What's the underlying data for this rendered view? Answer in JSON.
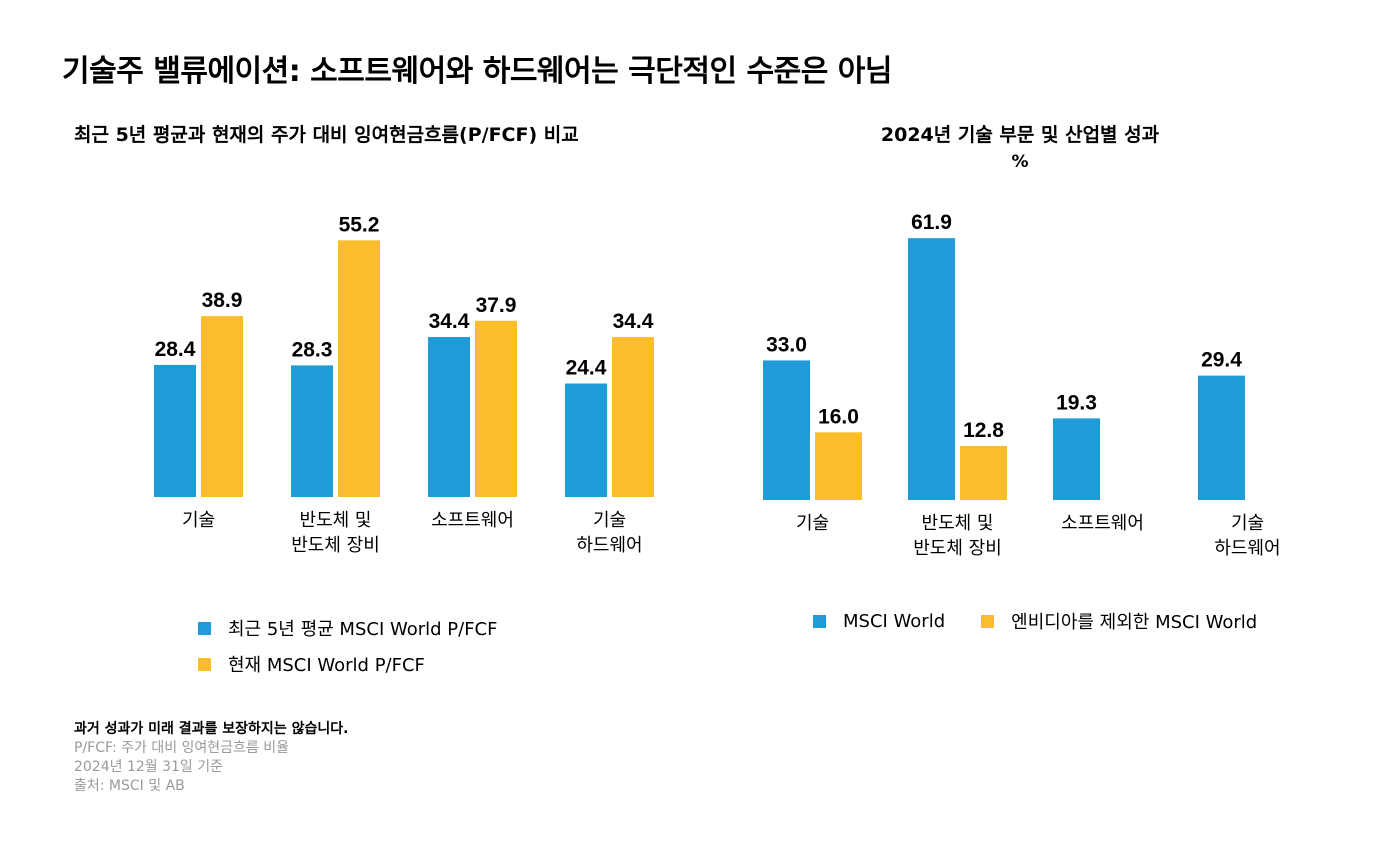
{
  "title": "기술주 밸류에이션: 소프트웨어와 하드웨어는 극단적인 수준은 아님",
  "colors": {
    "blue": "#1f9bd7",
    "orange": "#fbbd2c"
  },
  "chart_data": [
    {
      "type": "bar",
      "title": "최근 5년 평균과 현재의 주가 대비 잉여현금흐름(P/FCF) 비교",
      "categories": [
        "기술",
        "반도체 및\n반도체 장비",
        "소프트웨어",
        "기술\n하드웨어"
      ],
      "series": [
        {
          "name": "최근 5년 평균 MSCI World P/FCF",
          "values": [
            28.4,
            28.3,
            34.4,
            24.4
          ],
          "color": "#1f9bd7"
        },
        {
          "name": "현재 MSCI World P/FCF",
          "values": [
            38.9,
            55.2,
            37.9,
            34.4
          ],
          "color": "#fbbd2c"
        }
      ],
      "ylim": [
        0,
        60
      ],
      "legend_position": "bottom",
      "grid": false
    },
    {
      "type": "bar",
      "title": "2024년 기술 부문 및 산업별 성과",
      "unit": "%",
      "categories": [
        "기술",
        "반도체 및\n반도체 장비",
        "소프트웨어",
        "기술\n하드웨어"
      ],
      "series": [
        {
          "name": "MSCI World",
          "values": [
            33.0,
            61.9,
            19.3,
            29.4
          ],
          "color": "#1f9bd7"
        },
        {
          "name": "엔비디아를 제외한 MSCI World",
          "values": [
            16.0,
            12.8,
            null,
            null
          ],
          "color": "#fbbd2c"
        }
      ],
      "ylim": [
        0,
        65
      ],
      "legend_position": "bottom",
      "grid": false
    }
  ],
  "footnotes": {
    "disclaimer": "과거 성과가 미래 결과를 보장하지는 않습니다.",
    "definition": "P/FCF: 주가 대비 잉여현금흐름 비율",
    "date": "2024년 12월 31일 기준",
    "source": "출처: MSCI 및 AB"
  }
}
